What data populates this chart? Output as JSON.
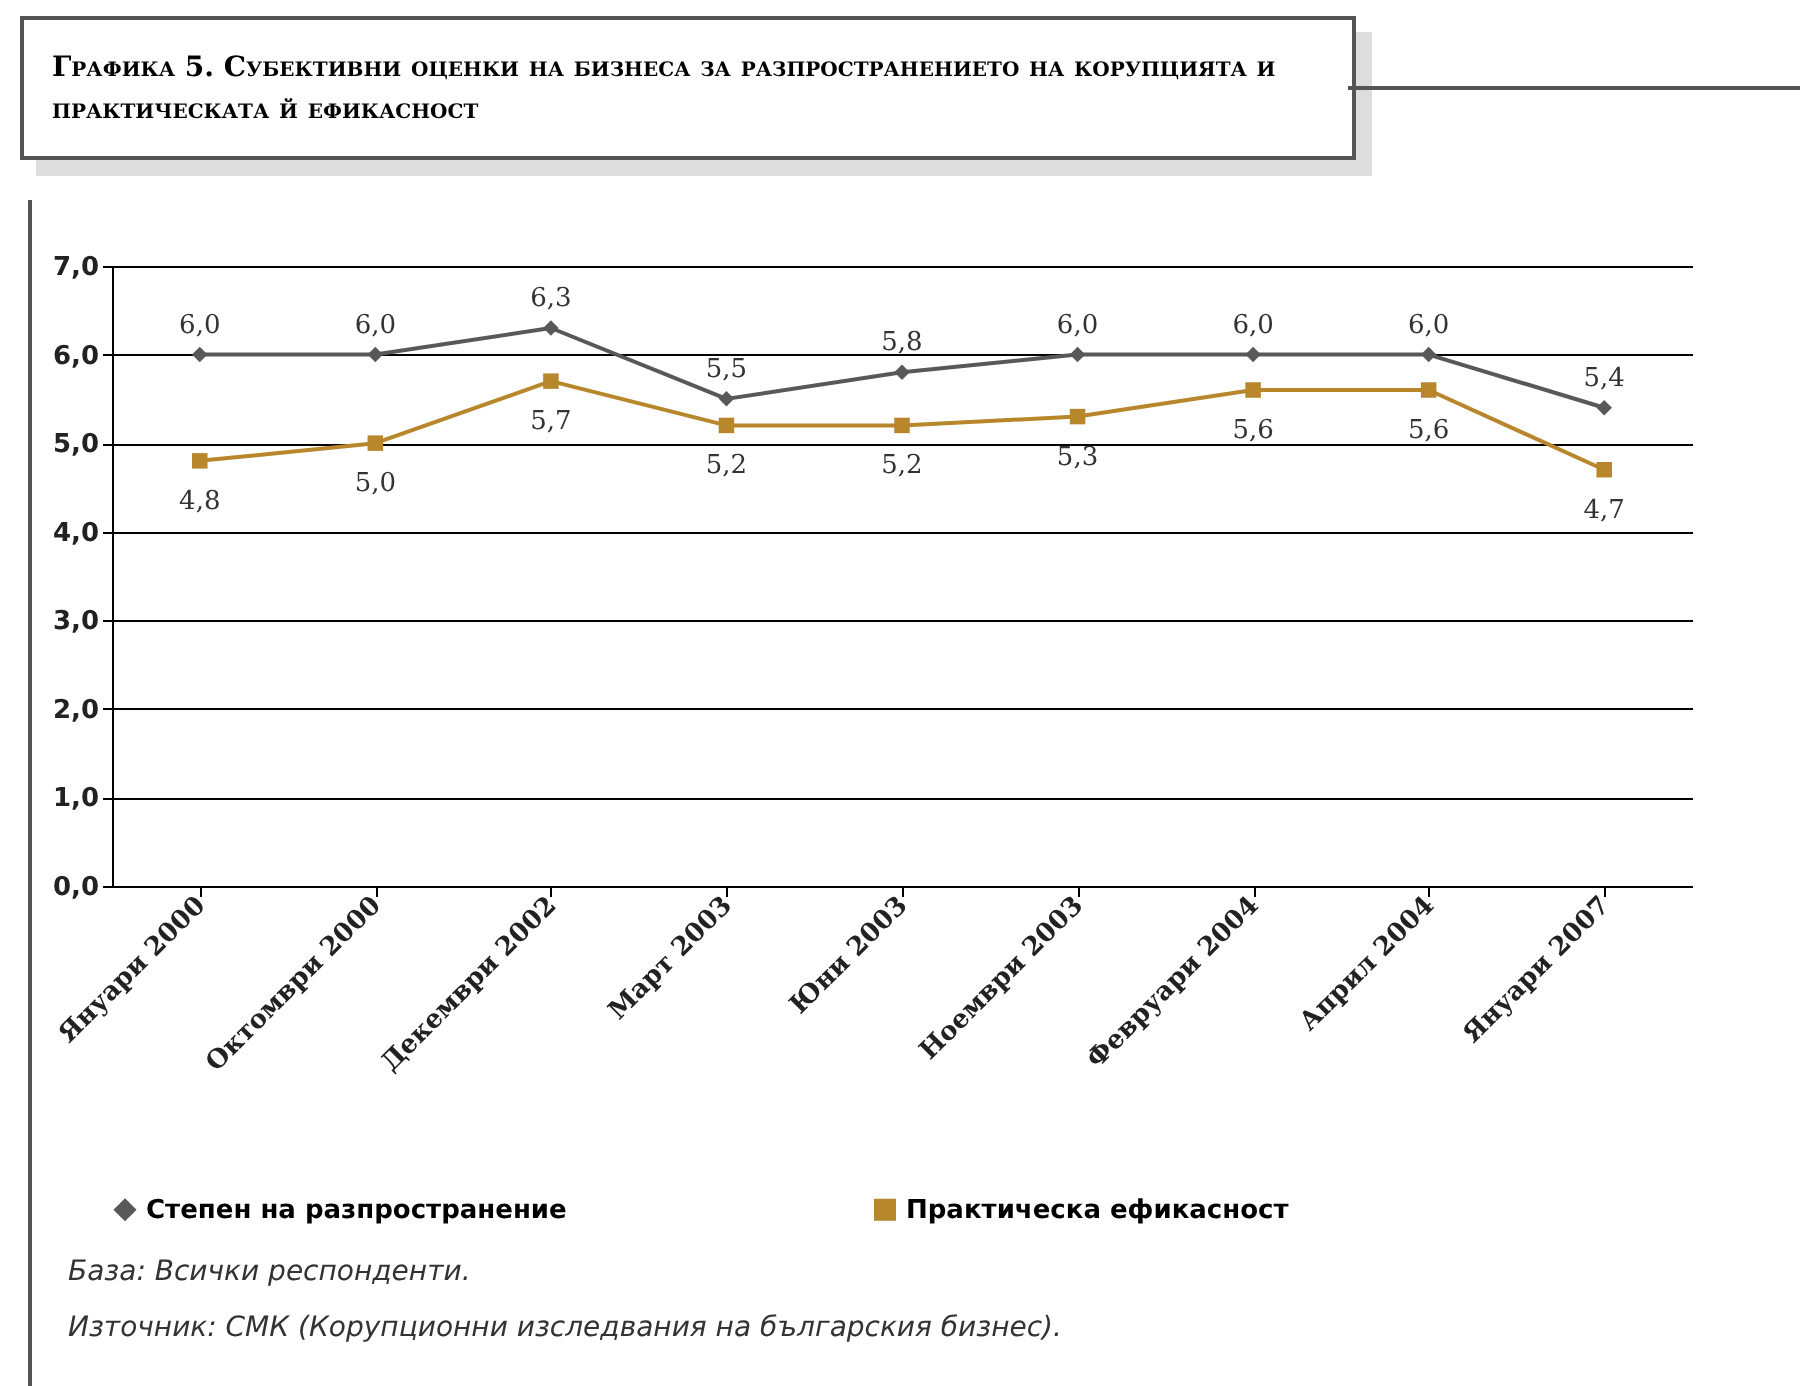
{
  "chart_data": {
    "type": "line",
    "title": "Графика 5. Субективни оценки на бизнеса за разпространението на корупцията и практическата й ефикасност",
    "categories": [
      "Януари 2000",
      "Октомври 2000",
      "Декември 2002",
      "Март 2003",
      "Юни 2003",
      "Ноември 2003",
      "Февруари 2004",
      "Април 2004",
      "Януари 2007"
    ],
    "series": [
      {
        "name": "Степен на разпространение",
        "color": "#58585a",
        "marker": "diamond",
        "values": [
          6.0,
          6.0,
          6.3,
          5.5,
          5.8,
          6.0,
          6.0,
          6.0,
          5.4
        ],
        "value_labels": [
          "6,0",
          "6,0",
          "6,3",
          "5,5",
          "5,8",
          "6,0",
          "6,0",
          "6,0",
          "5,4"
        ]
      },
      {
        "name": "Практическа ефикасност",
        "color": "#b8862b",
        "marker": "square",
        "values": [
          4.8,
          5.0,
          5.7,
          5.2,
          5.2,
          5.3,
          5.6,
          5.6,
          4.7
        ],
        "value_labels": [
          "4,8",
          "5,0",
          "5,7",
          "5,2",
          "5,2",
          "5,3",
          "5,6",
          "5,6",
          "4,7"
        ]
      }
    ],
    "ylim": [
      0,
      7
    ],
    "yticks": [
      {
        "value": 0,
        "label": "0,0"
      },
      {
        "value": 1,
        "label": "1,0"
      },
      {
        "value": 2,
        "label": "2,0"
      },
      {
        "value": 3,
        "label": "3,0"
      },
      {
        "value": 4,
        "label": "4,0"
      },
      {
        "value": 5,
        "label": "5,0"
      },
      {
        "value": 6,
        "label": "6,0"
      },
      {
        "value": 7,
        "label": "7,0"
      }
    ],
    "grid": "y",
    "legend": "bottom",
    "line_style": "solid",
    "annotations": [
      "База: Всички респонденти.",
      "Източник: СМК (Корупционни изследвания на българския бизнес)."
    ]
  }
}
